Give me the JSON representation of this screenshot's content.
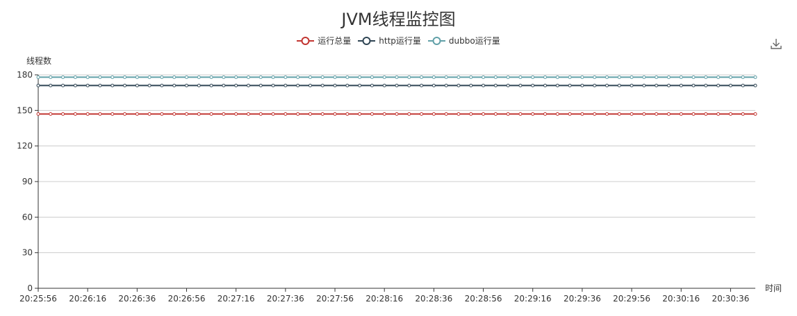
{
  "chart_data": {
    "type": "line",
    "title": "JVM线程监控图",
    "ylabel": "线程数",
    "xlabel": "时间",
    "ylim": [
      0,
      180
    ],
    "yticks": [
      0,
      30,
      60,
      90,
      120,
      150,
      180
    ],
    "x": [
      "20:25:56",
      "20:26:01",
      "20:26:06",
      "20:26:11",
      "20:26:16",
      "20:26:21",
      "20:26:26",
      "20:26:31",
      "20:26:36",
      "20:26:41",
      "20:26:46",
      "20:26:51",
      "20:26:56",
      "20:27:01",
      "20:27:06",
      "20:27:11",
      "20:27:16",
      "20:27:21",
      "20:27:26",
      "20:27:31",
      "20:27:36",
      "20:27:41",
      "20:27:46",
      "20:27:51",
      "20:27:56",
      "20:28:01",
      "20:28:06",
      "20:28:11",
      "20:28:16",
      "20:28:21",
      "20:28:26",
      "20:28:31",
      "20:28:36",
      "20:28:41",
      "20:28:46",
      "20:28:51",
      "20:28:56",
      "20:29:01",
      "20:29:06",
      "20:29:11",
      "20:29:16",
      "20:29:21",
      "20:29:26",
      "20:29:31",
      "20:29:36",
      "20:29:41",
      "20:29:46",
      "20:29:51",
      "20:29:56",
      "20:30:01",
      "20:30:06",
      "20:30:11",
      "20:30:16",
      "20:30:21",
      "20:30:26",
      "20:30:31",
      "20:30:36",
      "20:30:41",
      "20:30:46"
    ],
    "xticks_labeled": [
      "20:25:56",
      "20:26:16",
      "20:26:36",
      "20:26:56",
      "20:27:16",
      "20:27:36",
      "20:27:56",
      "20:28:16",
      "20:28:36",
      "20:28:56",
      "20:29:16",
      "20:29:36",
      "20:29:56",
      "20:30:16",
      "20:30:36"
    ],
    "series": [
      {
        "name": "运行总量",
        "color": "#c23531",
        "value": 147
      },
      {
        "name": "http运行量",
        "color": "#2f4554",
        "value": 171
      },
      {
        "name": "dubbo运行量",
        "color": "#61a0a8",
        "value": 178
      }
    ],
    "grid": true,
    "legend_position": "top-center"
  },
  "toolbox": {
    "download_icon": "download-icon"
  }
}
